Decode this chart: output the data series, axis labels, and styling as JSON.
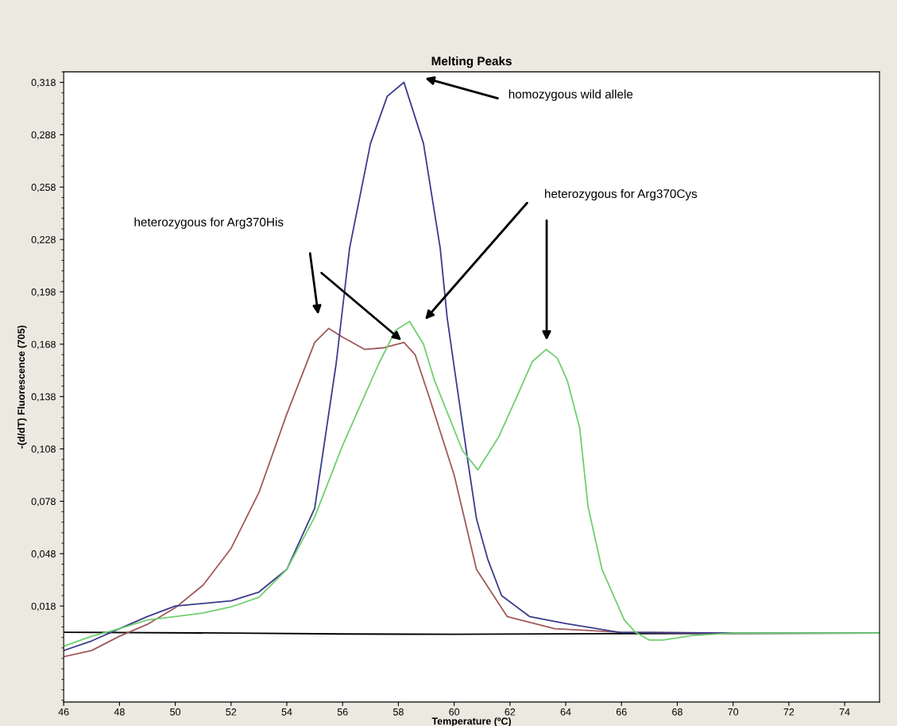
{
  "chart_data": {
    "type": "line",
    "title": "Melting Peaks",
    "xlabel": "Temperature (ºC)",
    "ylabel": "-(d/dT) Fluorescence (705)",
    "xlim": [
      46,
      75.25
    ],
    "ylim": [
      -0.037,
      0.324
    ],
    "xticks": [
      46,
      48,
      50,
      52,
      54,
      56,
      58,
      60,
      62,
      64,
      66,
      68,
      70,
      72,
      74
    ],
    "yticks": [
      {
        "value": 0.018,
        "label": "0,018"
      },
      {
        "value": 0.048,
        "label": "0,048"
      },
      {
        "value": 0.078,
        "label": "0,078"
      },
      {
        "value": 0.108,
        "label": "0,108"
      },
      {
        "value": 0.138,
        "label": "0,138"
      },
      {
        "value": 0.168,
        "label": "0,168"
      },
      {
        "value": 0.198,
        "label": "0,198"
      },
      {
        "value": 0.228,
        "label": "0,228"
      },
      {
        "value": 0.258,
        "label": "0,258"
      },
      {
        "value": 0.288,
        "label": "0,288"
      },
      {
        "value": 0.318,
        "label": "0,318"
      }
    ],
    "grid": false,
    "legend": false,
    "marker": "none",
    "line_style": "solid",
    "series": [
      {
        "color": "#000000",
        "x": [
          46,
          52,
          56,
          60,
          66,
          75.25
        ],
        "values": [
          0.003,
          0.0025,
          0.002,
          0.0018,
          0.0022,
          0.0025
        ]
      },
      {
        "color": "#a05a5a",
        "x": [
          46,
          47,
          48,
          49,
          50,
          51,
          52,
          53,
          54,
          55,
          55.5,
          56,
          56.8,
          57.5,
          58.2,
          58.6,
          59.1,
          60.0,
          60.8,
          61.9,
          63.6,
          66,
          70,
          75.25
        ],
        "values": [
          -0.011,
          -0.0075,
          0.0007,
          0.0075,
          0.017,
          0.03,
          0.051,
          0.083,
          0.128,
          0.169,
          0.177,
          0.172,
          0.165,
          0.166,
          0.169,
          0.162,
          0.138,
          0.093,
          0.039,
          0.012,
          0.005,
          0.003,
          0.0025,
          0.0025
        ]
      },
      {
        "color": "#3c3c8c",
        "x": [
          46,
          47,
          48,
          49,
          50,
          51,
          52,
          53,
          54,
          55,
          55.77,
          56.25,
          57.0,
          57.6,
          58.2,
          58.9,
          59.5,
          59.75,
          60.0,
          60.5,
          60.8,
          61.2,
          61.7,
          62.7,
          64,
          65.9,
          70,
          75.25
        ],
        "values": [
          -0.0075,
          -0.002,
          0.005,
          0.012,
          0.018,
          0.0195,
          0.021,
          0.026,
          0.039,
          0.074,
          0.157,
          0.223,
          0.283,
          0.31,
          0.318,
          0.283,
          0.223,
          0.183,
          0.155,
          0.1,
          0.068,
          0.045,
          0.024,
          0.012,
          0.008,
          0.003,
          0.0025,
          0.0025
        ]
      },
      {
        "color": "#70d070",
        "x": [
          46,
          47,
          48,
          49,
          50,
          51,
          52,
          53,
          54,
          55,
          56,
          57.3,
          57.9,
          58.4,
          58.9,
          59.3,
          60.3,
          60.85,
          61.6,
          62.25,
          62.8,
          63.3,
          63.7,
          64.06,
          64.5,
          64.8,
          65.3,
          66.1,
          66.5,
          67.0,
          67.5,
          68.5,
          70,
          75.25
        ],
        "values": [
          -0.005,
          0.0007,
          0.005,
          0.01,
          0.012,
          0.014,
          0.0175,
          0.023,
          0.039,
          0.069,
          0.11,
          0.157,
          0.176,
          0.181,
          0.168,
          0.147,
          0.107,
          0.096,
          0.115,
          0.138,
          0.158,
          0.165,
          0.16,
          0.147,
          0.12,
          0.075,
          0.039,
          0.01,
          0.003,
          -0.0015,
          -0.0015,
          0.001,
          0.0025,
          0.0025
        ]
      }
    ],
    "annotations": [
      "homozygous wild allele",
      "heterozygous for Arg370His",
      "heterozygous for Arg370Cys"
    ]
  }
}
